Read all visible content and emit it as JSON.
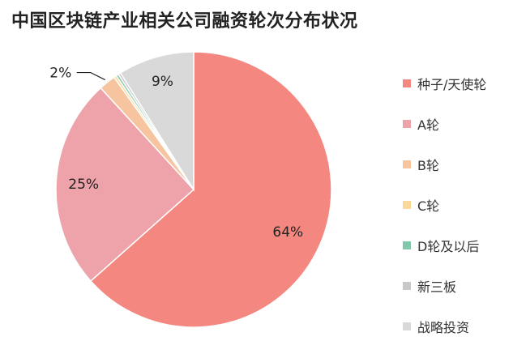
{
  "chart_data": {
    "type": "pie",
    "title": "中国区块链产业相关公司融资轮次分布状况",
    "categories": [
      "种子/天使轮",
      "A轮",
      "B轮",
      "C轮",
      "D轮及以后",
      "新三板",
      "战略投资"
    ],
    "values": [
      64,
      25,
      2,
      0.3,
      0.3,
      0.3,
      9
    ],
    "data_labels": [
      "64%",
      "25%",
      "2%",
      "",
      "",
      "",
      "9%"
    ],
    "colors": [
      "#f4877f",
      "#eda3a9",
      "#f6c49e",
      "#f9d89a",
      "#7fc8a9",
      "#c9c9c9",
      "#d9d9d9"
    ],
    "start": "top",
    "direction": "clockwise",
    "legend_position": "right"
  }
}
